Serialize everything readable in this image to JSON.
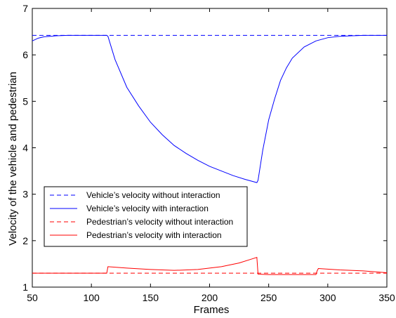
{
  "chart_data": {
    "type": "line",
    "xlabel": "Frames",
    "ylabel": "Velocity of the vehicle and pedestrian",
    "xlim": [
      50,
      350
    ],
    "ylim": [
      1,
      7
    ],
    "xticks": [
      50,
      100,
      150,
      200,
      250,
      300,
      350
    ],
    "yticks": [
      1,
      2,
      3,
      4,
      5,
      6,
      7
    ],
    "legend_position": "lower-left",
    "colors": {
      "blue": "#0000ff",
      "red": "#ff0000"
    },
    "series": [
      {
        "name": "Vehicle’s velocity without interaction",
        "style": "dashed",
        "color": "#0000ff",
        "x": [
          50,
          350
        ],
        "y": [
          6.42,
          6.42
        ]
      },
      {
        "name": "Vehicle’s velocity with interaction",
        "style": "solid",
        "color": "#0000ff",
        "x": [
          50,
          55,
          60,
          65,
          70,
          80,
          90,
          100,
          110,
          113,
          114,
          120,
          130,
          140,
          150,
          160,
          170,
          180,
          190,
          200,
          210,
          220,
          230,
          240,
          241,
          245,
          250,
          255,
          260,
          265,
          270,
          280,
          290,
          300,
          310,
          320,
          330,
          340,
          350
        ],
        "y": [
          6.3,
          6.36,
          6.39,
          6.4,
          6.41,
          6.42,
          6.42,
          6.42,
          6.42,
          6.42,
          6.4,
          5.9,
          5.3,
          4.9,
          4.55,
          4.28,
          4.05,
          3.88,
          3.73,
          3.6,
          3.5,
          3.4,
          3.32,
          3.25,
          3.3,
          3.95,
          4.6,
          5.05,
          5.45,
          5.72,
          5.93,
          6.17,
          6.3,
          6.37,
          6.4,
          6.41,
          6.42,
          6.42,
          6.42
        ]
      },
      {
        "name": "Pedestrian’s velocity without interaction",
        "style": "dashed",
        "color": "#ff0000",
        "x": [
          50,
          350
        ],
        "y": [
          1.3,
          1.3
        ]
      },
      {
        "name": "Pedestrian’s velocity with interaction",
        "style": "solid",
        "color": "#ff0000",
        "x": [
          50,
          113,
          114,
          130,
          150,
          170,
          190,
          210,
          225,
          235,
          240,
          241,
          250,
          270,
          290,
          291,
          292,
          310,
          330,
          350
        ],
        "y": [
          1.3,
          1.3,
          1.44,
          1.41,
          1.38,
          1.36,
          1.38,
          1.44,
          1.52,
          1.6,
          1.64,
          1.28,
          1.27,
          1.27,
          1.27,
          1.35,
          1.4,
          1.37,
          1.35,
          1.31
        ]
      }
    ]
  }
}
